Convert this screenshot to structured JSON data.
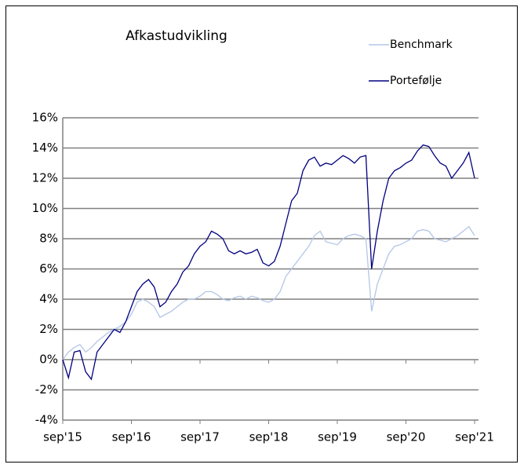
{
  "chart_data": {
    "type": "line",
    "title": "Afkastudvikling",
    "categories": [
      "sep'15",
      null,
      null,
      null,
      null,
      null,
      null,
      null,
      null,
      null,
      null,
      null,
      "sep'16",
      null,
      null,
      null,
      null,
      null,
      null,
      null,
      null,
      null,
      null,
      null,
      "sep'17",
      null,
      null,
      null,
      null,
      null,
      null,
      null,
      null,
      null,
      null,
      null,
      "sep'18",
      null,
      null,
      null,
      null,
      null,
      null,
      null,
      null,
      null,
      null,
      null,
      "sep'19",
      null,
      null,
      null,
      null,
      null,
      null,
      null,
      null,
      null,
      null,
      null,
      "sep'20",
      null,
      null,
      null,
      null,
      null,
      null,
      null,
      null,
      null,
      null,
      null,
      "sep'21"
    ],
    "series": [
      {
        "name": "Benchmark",
        "color": "#b4c6e7",
        "values": [
          0,
          0.5,
          0.8,
          1.0,
          0.5,
          0.8,
          1.2,
          1.5,
          1.8,
          2.0,
          2.2,
          2.5,
          3.0,
          3.8,
          4.0,
          3.8,
          3.5,
          2.8,
          3.0,
          3.2,
          3.5,
          3.8,
          4.0,
          4.0,
          4.2,
          4.5,
          4.5,
          4.3,
          4.0,
          3.9,
          4.1,
          4.2,
          4.0,
          4.2,
          4.1,
          3.9,
          3.8,
          4.0,
          4.5,
          5.5,
          6.0,
          6.5,
          7.0,
          7.5,
          8.2,
          8.5,
          7.8,
          7.7,
          7.6,
          8.0,
          8.2,
          8.3,
          8.2,
          8.0,
          3.2,
          5.0,
          6.0,
          7.0,
          7.5,
          7.6,
          7.8,
          8.0,
          8.5,
          8.6,
          8.5,
          8.0,
          7.9,
          7.8,
          8.0,
          8.2,
          8.5,
          8.8,
          8.2
        ]
      },
      {
        "name": "Portefølje",
        "color": "#000080",
        "values": [
          0,
          -1.2,
          0.5,
          0.6,
          -0.8,
          -1.3,
          0.5,
          1.0,
          1.5,
          2.0,
          1.8,
          2.5,
          3.5,
          4.5,
          5.0,
          5.3,
          4.8,
          3.5,
          3.8,
          4.5,
          5.0,
          5.8,
          6.2,
          7.0,
          7.5,
          7.8,
          8.5,
          8.3,
          8.0,
          7.2,
          7.0,
          7.2,
          7.0,
          7.1,
          7.3,
          6.4,
          6.2,
          6.5,
          7.5,
          9.0,
          10.5,
          11.0,
          12.5,
          13.2,
          13.4,
          12.8,
          13.0,
          12.9,
          13.2,
          13.5,
          13.3,
          13.0,
          13.4,
          13.5,
          6.0,
          8.5,
          10.5,
          12.0,
          12.5,
          12.7,
          13.0,
          13.2,
          13.8,
          14.2,
          14.1,
          13.5,
          13.0,
          12.8,
          12.0,
          12.5,
          13.0,
          13.7,
          12.0
        ]
      }
    ],
    "ylim": [
      -4,
      16
    ],
    "yticks": [
      {
        "value": -4,
        "label": "-4%"
      },
      {
        "value": -2,
        "label": "-2%"
      },
      {
        "value": 0,
        "label": "0%"
      },
      {
        "value": 2,
        "label": "2%"
      },
      {
        "value": 4,
        "label": "4%"
      },
      {
        "value": 6,
        "label": "6%"
      },
      {
        "value": 8,
        "label": "8%"
      },
      {
        "value": 10,
        "label": "10%"
      },
      {
        "value": 12,
        "label": "12%"
      },
      {
        "value": 14,
        "label": "14%"
      },
      {
        "value": 16,
        "label": "16%"
      }
    ],
    "grid": true
  }
}
